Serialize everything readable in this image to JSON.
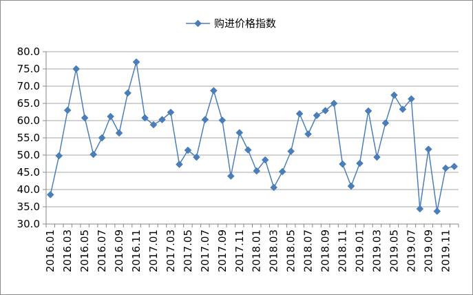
{
  "chart_data": {
    "type": "line",
    "legend": {
      "position": "top",
      "entries": [
        "购进价格指数"
      ]
    },
    "series": [
      {
        "name": "购进价格指数",
        "color": "#4a7ebb",
        "marker": "diamond",
        "values": [
          38.5,
          49.8,
          63.0,
          75.0,
          60.8,
          50.2,
          55.0,
          61.2,
          56.4,
          68.0,
          77.0,
          60.8,
          58.8,
          60.3,
          62.4,
          47.3,
          51.4,
          49.4,
          60.3,
          68.7,
          60.1,
          43.9,
          56.5,
          51.5,
          45.4,
          48.6,
          40.6,
          45.2,
          51.1,
          62.0,
          56.1,
          61.5,
          62.9,
          65.0,
          47.4,
          41.0,
          47.6,
          62.8,
          49.4,
          59.3,
          67.4,
          63.3,
          66.3,
          34.4,
          51.7,
          33.7,
          46.2,
          46.7
        ]
      }
    ],
    "x_tick_labels": [
      "2016.01",
      "2016.03",
      "2016.05",
      "2016.07",
      "2016.09",
      "2016.11",
      "2017.01",
      "2017.03",
      "2017.05",
      "2017.07",
      "2017.09",
      "2017.11",
      "2018.01",
      "2018.03",
      "2018.05",
      "2018.07",
      "2018.09",
      "2018.11",
      "2019.01",
      "2019.03",
      "2019.05",
      "2019.07",
      "2019.09",
      "2019.11"
    ],
    "y_ticks": [
      "30.0",
      "35.0",
      "40.0",
      "45.0",
      "50.0",
      "55.0",
      "60.0",
      "65.0",
      "70.0",
      "75.0",
      "80.0"
    ],
    "ylim": [
      30,
      80
    ],
    "grid": {
      "horizontal": true,
      "vertical": false
    },
    "gridline_color": "#a6a6a6"
  }
}
